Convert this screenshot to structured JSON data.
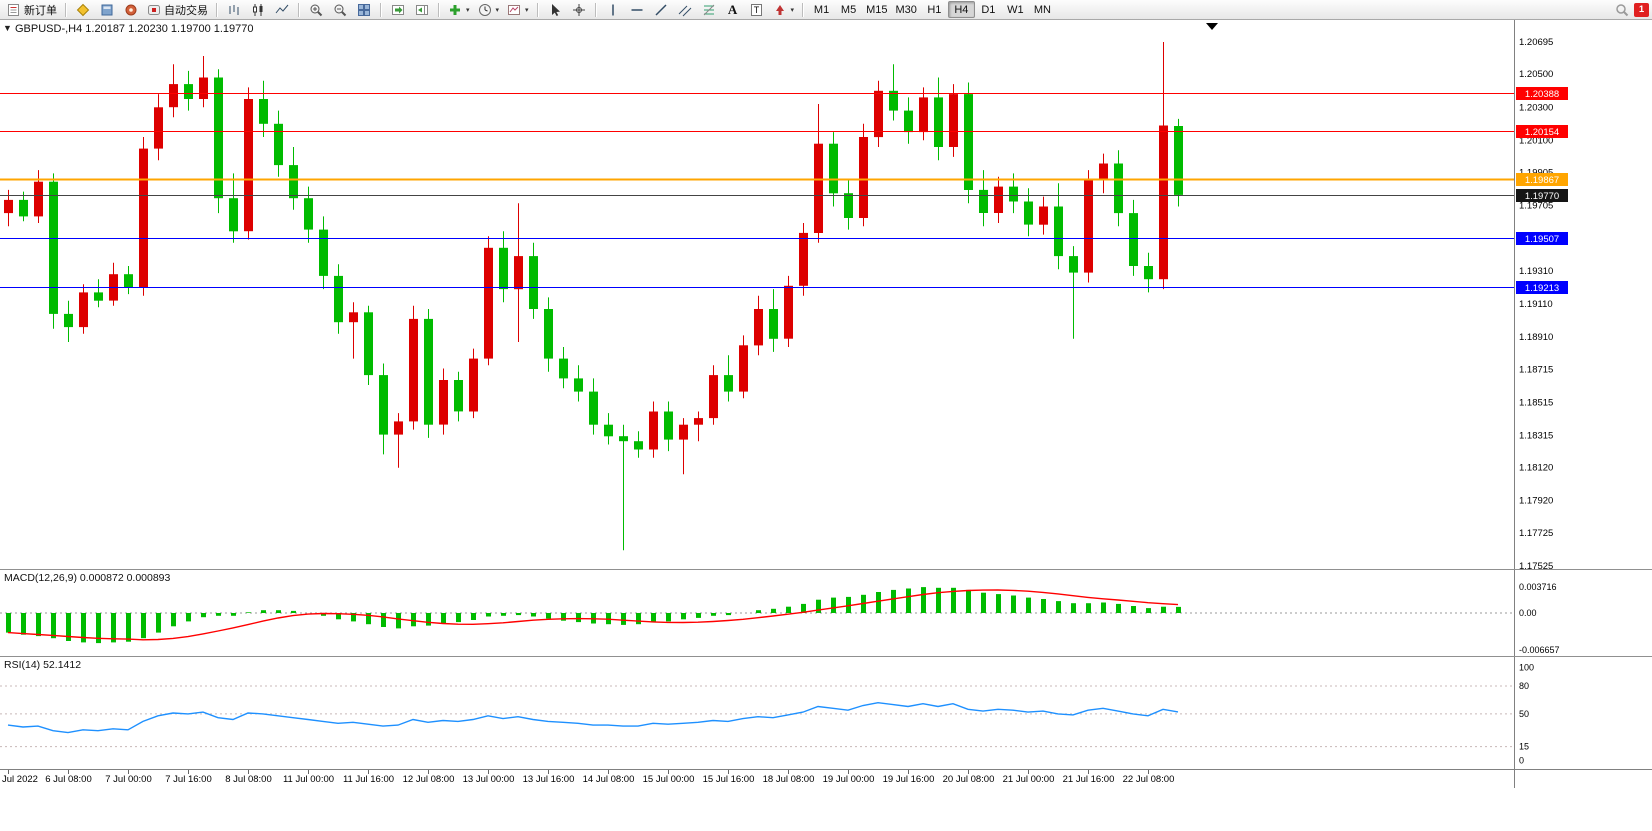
{
  "icons": {
    "dropdown_caret": "▾",
    "symbol_dropdown": "▼"
  },
  "toolbar": {
    "new_order_label": "新订单",
    "autotrading_label": "自动交易",
    "text_tool_label": "A",
    "text_label_tool_label": "T",
    "timeframes": [
      "M1",
      "M5",
      "M15",
      "M30",
      "H1",
      "H4",
      "D1",
      "W1",
      "MN"
    ],
    "active_timeframe": "H4",
    "notification_badge": "1"
  },
  "chart_data": [
    {
      "type": "candlestick",
      "symbol": "GBPUSD-",
      "timeframe": "H4",
      "title_text": "GBPUSD-,H4 1.20187 1.20230 1.19700 1.19770",
      "current_bar": {
        "open": 1.20187,
        "high": 1.2023,
        "low": 1.197,
        "close": 1.1977
      },
      "bull_color": "#dd0000",
      "bear_color": "#00bb00",
      "ylim": [
        1.17513,
        1.20828
      ],
      "y_axis_labels": [
        "1.20695",
        "1.20500",
        "1.20300",
        "1.20100",
        "1.19905",
        "1.19705",
        "1.19310",
        "1.19110",
        "1.18910",
        "1.18715",
        "1.18515",
        "1.18315",
        "1.18120",
        "1.17920",
        "1.17725",
        "1.17525"
      ],
      "hlines": [
        {
          "value": 1.20388,
          "color": "#ff0000",
          "label": "1.20388",
          "width": 1
        },
        {
          "value": 1.20154,
          "color": "#ff0000",
          "label": "1.20154",
          "width": 1
        },
        {
          "value": 1.19867,
          "color": "#ffa500",
          "label": "1.19867",
          "width": 2
        },
        {
          "value": 1.1977,
          "color": "#444444",
          "label": "1.19770",
          "width": 1,
          "badge": "#151515"
        },
        {
          "value": 1.19507,
          "color": "#0000ff",
          "label": "1.19507",
          "width": 1
        },
        {
          "value": 1.19213,
          "color": "#0000ff",
          "label": "1.19213",
          "width": 1
        }
      ],
      "candles": [
        [
          1.1966,
          1.198,
          1.1958,
          1.1974
        ],
        [
          1.1974,
          1.1979,
          1.1961,
          1.1964
        ],
        [
          1.1964,
          1.1992,
          1.196,
          1.1985
        ],
        [
          1.1985,
          1.199,
          1.1896,
          1.1905
        ],
        [
          1.1905,
          1.1913,
          1.1888,
          1.1897
        ],
        [
          1.1897,
          1.1923,
          1.1893,
          1.1918
        ],
        [
          1.1918,
          1.1926,
          1.1909,
          1.1913
        ],
        [
          1.1913,
          1.1936,
          1.191,
          1.1929
        ],
        [
          1.1929,
          1.1934,
          1.1917,
          1.1921
        ],
        [
          1.1921,
          1.2012,
          1.1916,
          1.2005
        ],
        [
          1.2005,
          1.2038,
          1.1998,
          1.203
        ],
        [
          1.203,
          1.2056,
          1.2024,
          1.2044
        ],
        [
          1.2044,
          1.2052,
          1.2028,
          1.2035
        ],
        [
          1.2035,
          1.2061,
          1.203,
          1.2048
        ],
        [
          1.2048,
          1.2053,
          1.1966,
          1.1975
        ],
        [
          1.1975,
          1.199,
          1.1948,
          1.1955
        ],
        [
          1.1955,
          1.2042,
          1.195,
          1.2035
        ],
        [
          1.2035,
          1.2046,
          1.2012,
          1.202
        ],
        [
          1.202,
          1.2028,
          1.1988,
          1.1995
        ],
        [
          1.1995,
          1.2006,
          1.1968,
          1.1975
        ],
        [
          1.1975,
          1.1982,
          1.1948,
          1.1956
        ],
        [
          1.1956,
          1.1964,
          1.192,
          1.1928
        ],
        [
          1.1928,
          1.1935,
          1.1893,
          1.19
        ],
        [
          1.19,
          1.1912,
          1.1878,
          1.1906
        ],
        [
          1.1906,
          1.191,
          1.1862,
          1.1868
        ],
        [
          1.1868,
          1.1875,
          1.182,
          1.1832
        ],
        [
          1.1832,
          1.1845,
          1.1812,
          1.184
        ],
        [
          1.184,
          1.191,
          1.1835,
          1.1902
        ],
        [
          1.1902,
          1.1908,
          1.183,
          1.1838
        ],
        [
          1.1838,
          1.1872,
          1.1832,
          1.1865
        ],
        [
          1.1865,
          1.187,
          1.184,
          1.1846
        ],
        [
          1.1846,
          1.1884,
          1.1842,
          1.1878
        ],
        [
          1.1878,
          1.1952,
          1.1874,
          1.1945
        ],
        [
          1.1945,
          1.1955,
          1.1912,
          1.192
        ],
        [
          1.192,
          1.1972,
          1.1888,
          1.194
        ],
        [
          1.194,
          1.1948,
          1.1902,
          1.1908
        ],
        [
          1.1908,
          1.1915,
          1.187,
          1.1878
        ],
        [
          1.1878,
          1.1885,
          1.186,
          1.1866
        ],
        [
          1.1866,
          1.1874,
          1.1852,
          1.1858
        ],
        [
          1.1858,
          1.1866,
          1.1832,
          1.1838
        ],
        [
          1.1838,
          1.1845,
          1.1826,
          1.1831
        ],
        [
          1.1831,
          1.1838,
          1.1762,
          1.1828
        ],
        [
          1.1828,
          1.1834,
          1.1818,
          1.1823
        ],
        [
          1.1823,
          1.1852,
          1.1818,
          1.1846
        ],
        [
          1.1846,
          1.1852,
          1.1822,
          1.1829
        ],
        [
          1.1829,
          1.1842,
          1.1808,
          1.1838
        ],
        [
          1.1838,
          1.1846,
          1.1828,
          1.1842
        ],
        [
          1.1842,
          1.1874,
          1.1838,
          1.1868
        ],
        [
          1.1868,
          1.188,
          1.1852,
          1.1858
        ],
        [
          1.1858,
          1.1892,
          1.1854,
          1.1886
        ],
        [
          1.1886,
          1.1916,
          1.188,
          1.1908
        ],
        [
          1.1908,
          1.192,
          1.1882,
          1.189
        ],
        [
          1.189,
          1.1928,
          1.1885,
          1.1922
        ],
        [
          1.1922,
          1.196,
          1.1916,
          1.1954
        ],
        [
          1.1954,
          1.2032,
          1.1948,
          1.2008
        ],
        [
          1.2008,
          1.2015,
          1.197,
          1.1978
        ],
        [
          1.1978,
          1.1986,
          1.1956,
          1.1963
        ],
        [
          1.1963,
          1.202,
          1.1958,
          1.2012
        ],
        [
          1.2012,
          1.2046,
          1.2006,
          1.204
        ],
        [
          1.204,
          1.2056,
          1.2022,
          1.2028
        ],
        [
          1.2028,
          1.2036,
          1.2008,
          1.2015
        ],
        [
          1.2015,
          1.2042,
          1.201,
          1.2036
        ],
        [
          1.2036,
          1.2048,
          1.1998,
          1.2006
        ],
        [
          1.2006,
          1.2044,
          1.2,
          1.2038
        ],
        [
          1.2038,
          1.2045,
          1.1972,
          1.198
        ],
        [
          1.198,
          1.1992,
          1.1958,
          1.1966
        ],
        [
          1.1966,
          1.1988,
          1.196,
          1.1982
        ],
        [
          1.1982,
          1.199,
          1.1966,
          1.1973
        ],
        [
          1.1973,
          1.1981,
          1.1952,
          1.1959
        ],
        [
          1.1959,
          1.1976,
          1.1953,
          1.197
        ],
        [
          1.197,
          1.1984,
          1.1932,
          1.194
        ],
        [
          1.194,
          1.1946,
          1.189,
          1.193
        ],
        [
          1.193,
          1.1992,
          1.1924,
          1.1986
        ],
        [
          1.1986,
          1.2002,
          1.1978,
          1.1996
        ],
        [
          1.1996,
          1.2004,
          1.1958,
          1.1966
        ],
        [
          1.1966,
          1.1974,
          1.1928,
          1.1934
        ],
        [
          1.1934,
          1.1942,
          1.1918,
          1.1926
        ],
        [
          1.1926,
          1.20695,
          1.192,
          1.2019
        ],
        [
          1.20187,
          1.2023,
          1.197,
          1.1977
        ]
      ],
      "x_labels": [
        {
          "bar": 0,
          "label": "Jul 2022"
        },
        {
          "bar": 4,
          "label": "6 Jul 08:00"
        },
        {
          "bar": 8,
          "label": "7 Jul 00:00"
        },
        {
          "bar": 12,
          "label": "7 Jul 16:00"
        },
        {
          "bar": 16,
          "label": "8 Jul 08:00"
        },
        {
          "bar": 20,
          "label": "11 Jul 00:00"
        },
        {
          "bar": 24,
          "label": "11 Jul 16:00"
        },
        {
          "bar": 28,
          "label": "12 Jul 08:00"
        },
        {
          "bar": 32,
          "label": "13 Jul 00:00"
        },
        {
          "bar": 36,
          "label": "13 Jul 16:00"
        },
        {
          "bar": 40,
          "label": "14 Jul 08:00"
        },
        {
          "bar": 44,
          "label": "15 Jul 00:00"
        },
        {
          "bar": 48,
          "label": "15 Jul 16:00"
        },
        {
          "bar": 52,
          "label": "18 Jul 08:00"
        },
        {
          "bar": 56,
          "label": "19 Jul 00:00"
        },
        {
          "bar": 60,
          "label": "19 Jul 16:00"
        },
        {
          "bar": 64,
          "label": "20 Jul 08:00"
        },
        {
          "bar": 68,
          "label": "21 Jul 00:00"
        },
        {
          "bar": 72,
          "label": "21 Jul 16:00"
        },
        {
          "bar": 76,
          "label": "22 Jul 08:00"
        }
      ]
    },
    {
      "type": "bar",
      "name": "MACD",
      "label": "MACD(12,26,9) 0.000872 0.000893",
      "params": "12,26,9",
      "value_main": 0.000872,
      "value_signal": 0.000893,
      "histogram_color": "#00bb00",
      "signal_color": "#ff0000",
      "signal_period": 9,
      "ylim": [
        -0.006,
        0.006
      ],
      "axis_labels": [
        {
          "value": 0.003716,
          "label": "0.003716"
        },
        {
          "value": 0,
          "label": "0.00"
        },
        {
          "value": -0.006657,
          "label": "-0.006657"
        }
      ],
      "values": [
        -0.0028,
        -0.0031,
        -0.0033,
        -0.0036,
        -0.004,
        -0.0042,
        -0.0043,
        -0.0042,
        -0.0041,
        -0.0036,
        -0.0028,
        -0.0019,
        -0.0012,
        -0.0006,
        -0.0004,
        -0.0004,
        0.0001,
        0.0004,
        0.0004,
        0.0003,
        0.0,
        -0.0004,
        -0.0009,
        -0.0012,
        -0.0016,
        -0.002,
        -0.0022,
        -0.0019,
        -0.0018,
        -0.0015,
        -0.0013,
        -0.001,
        -0.0005,
        -0.0004,
        -0.0003,
        -0.0005,
        -0.0008,
        -0.0011,
        -0.0013,
        -0.0015,
        -0.0016,
        -0.0017,
        -0.0016,
        -0.0013,
        -0.0012,
        -0.0009,
        -0.0007,
        -0.0004,
        -0.0003,
        0.0,
        0.0004,
        0.0006,
        0.0009,
        0.0013,
        0.0019,
        0.0022,
        0.0023,
        0.0026,
        0.003,
        0.0033,
        0.0035,
        0.0037,
        0.0036,
        0.0036,
        0.0033,
        0.0029,
        0.0027,
        0.0025,
        0.0022,
        0.002,
        0.0017,
        0.0014,
        0.0014,
        0.0015,
        0.0013,
        0.001,
        0.0007,
        0.0009,
        0.000872
      ]
    },
    {
      "type": "line",
      "name": "RSI",
      "label": "RSI(14) 52.1412",
      "period": 14,
      "value": 52.1412,
      "line_color": "#1e90ff",
      "levels": [
        80,
        50,
        15
      ],
      "ylim": [
        -8,
        110
      ],
      "axis_labels": [
        {
          "value": 100,
          "label": "100"
        },
        {
          "value": 80,
          "label": "80"
        },
        {
          "value": 50,
          "label": "50"
        },
        {
          "value": 15,
          "label": "15"
        },
        {
          "value": 0,
          "label": "0"
        }
      ],
      "values": [
        38,
        36,
        37,
        32,
        30,
        33,
        32,
        34,
        33,
        42,
        48,
        51,
        50,
        52,
        46,
        44,
        51,
        50,
        48,
        46,
        44,
        42,
        40,
        41,
        39,
        37,
        38,
        44,
        41,
        43,
        42,
        44,
        48,
        45,
        47,
        44,
        42,
        41,
        40,
        38,
        38,
        37,
        37,
        40,
        39,
        40,
        41,
        43,
        42,
        45,
        47,
        46,
        49,
        52,
        58,
        56,
        54,
        59,
        62,
        60,
        58,
        61,
        58,
        61,
        55,
        53,
        55,
        54,
        52,
        53,
        50,
        49,
        54,
        56,
        53,
        50,
        48,
        55,
        52.14
      ]
    }
  ]
}
